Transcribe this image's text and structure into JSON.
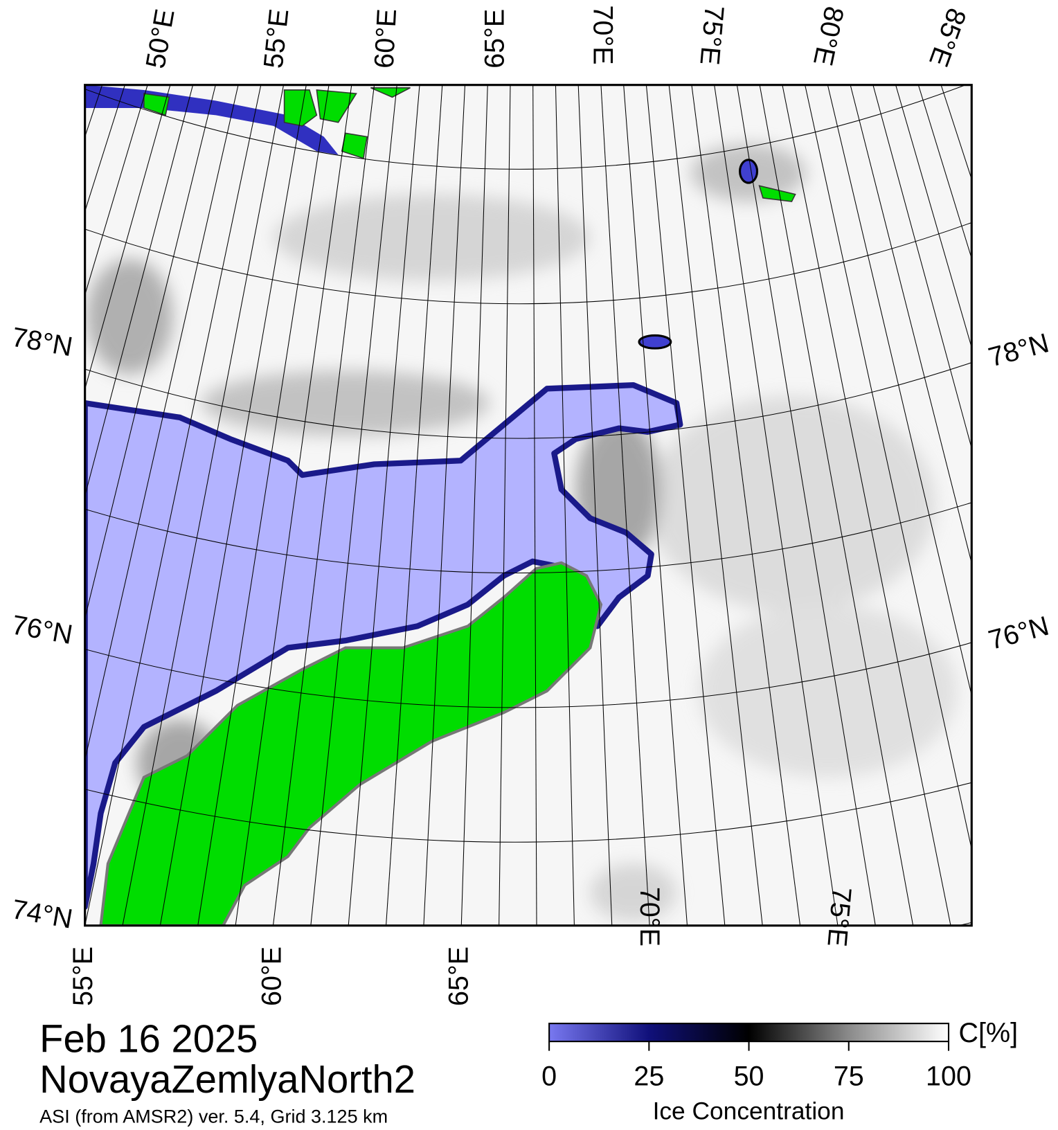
{
  "header": {
    "date": "Feb 16 2025",
    "region": "NovayaZemlyaNorth2",
    "source": "ASI (from AMSR2) ver. 5.4,  Grid 3.125 km"
  },
  "map": {
    "top_lon_labels": [
      "50°E",
      "55°E",
      "60°E",
      "65°E",
      "70°E",
      "75°E",
      "80°E",
      "85°E"
    ],
    "bottom_lon_labels": [
      "55°E",
      "60°E",
      "65°E",
      "70°E",
      "75°E"
    ],
    "left_lat_labels": [
      "78°N",
      "76°N",
      "74°N"
    ],
    "right_lat_labels": [
      "78°N",
      "76°N"
    ]
  },
  "colorbar": {
    "label": "Ice Concentration",
    "unit": "C[%]",
    "range": [
      0,
      100
    ],
    "ticks": [
      0,
      25,
      50,
      75,
      100
    ]
  }
}
